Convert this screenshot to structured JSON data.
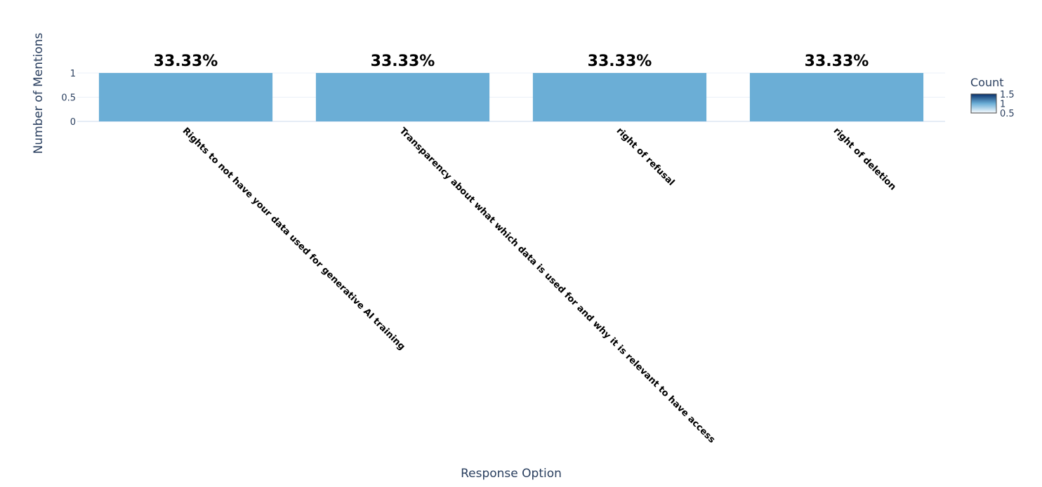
{
  "chart_data": {
    "type": "bar",
    "categories": [
      "Rights to not have your data used for generative AI training",
      "Transparency about what which data is used for and why it is relevant to have access",
      "right of refusal",
      "right of deletion"
    ],
    "values": [
      1,
      1,
      1,
      1
    ],
    "data_labels": [
      "33.33%",
      "33.33%",
      "33.33%",
      "33.33%"
    ],
    "xlabel": "Response Option",
    "ylabel": "Number of Mentions",
    "y_ticks": [
      {
        "value": 0,
        "label": "0"
      },
      {
        "value": 0.5,
        "label": "0.5"
      },
      {
        "value": 1,
        "label": "1"
      }
    ],
    "ylim": [
      0,
      1.05
    ],
    "bar_color": "#6baed6",
    "grid": true,
    "colorbar": {
      "title": "Count",
      "range": [
        0.5,
        1.5
      ],
      "ticks": [
        {
          "value": 1.5,
          "label": "1.5"
        },
        {
          "value": 1,
          "label": "1"
        },
        {
          "value": 0.5,
          "label": "0.5"
        }
      ],
      "color_low": "#f7fbff",
      "color_high": "#08306b",
      "placement": "right"
    }
  }
}
